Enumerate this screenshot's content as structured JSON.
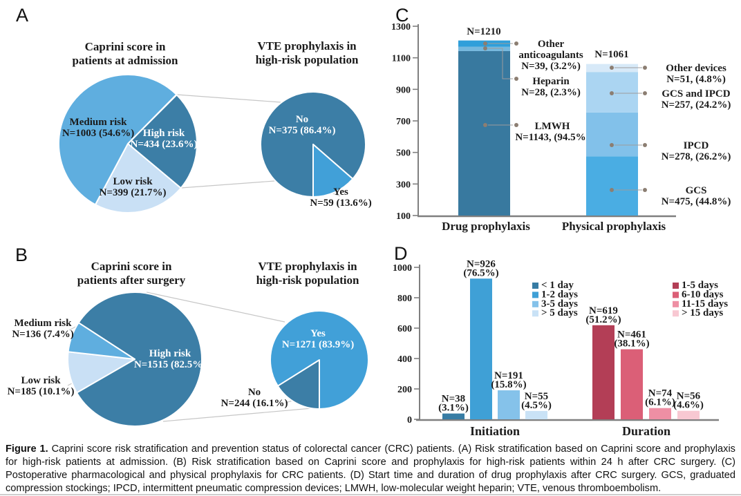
{
  "figure": {
    "panel_letters": [
      "A",
      "B",
      "C",
      "D"
    ]
  },
  "caption": {
    "prefix": "Figure 1.",
    "text": " Caprini score risk stratification and prevention status of colorectal cancer (CRC) patients. (A) Risk stratification based on Caprini score and prophylaxis for high-risk patients at admission. (B) Risk stratification based on Caprini score and prophylaxis for high-risk patients within 24 h after CRC surgery. (C) Postoperative pharmacological and physical prophylaxis for CRC patients. (D) Start time and duration of drug prophylaxis after CRC surgery. GCS, graduated compression stockings; IPCD, intermittent pneumatic compression devices; LMWH, low-molecular weight heparin; VTE, venous thromboembolism."
  },
  "chart_data": [
    {
      "id": "A-main",
      "panel": "A",
      "type": "pie",
      "title_lines": [
        "Caprini score in",
        "patients at admission"
      ],
      "slices": [
        {
          "label": "High risk",
          "n": 434,
          "pct": "23.6",
          "color": "#3C7EA6"
        },
        {
          "label": "Low risk",
          "n": 399,
          "pct": "21.7",
          "color": "#C9E0F5"
        },
        {
          "label": "Medium risk",
          "n": 1003,
          "pct": "54.6",
          "color": "#5FAEDF"
        }
      ]
    },
    {
      "id": "A-detail",
      "panel": "A",
      "type": "pie",
      "title_lines": [
        "VTE prophylaxis in",
        "high-risk population"
      ],
      "slices": [
        {
          "label": "No",
          "n": 375,
          "pct": "86.4",
          "color": "#3C7EA6"
        },
        {
          "label": "Yes",
          "n": 59,
          "pct": "13.6",
          "color": "#41A0D8"
        }
      ]
    },
    {
      "id": "B-main",
      "panel": "B",
      "type": "pie",
      "title_lines": [
        "Caprini score in",
        "patients after surgery"
      ],
      "slices": [
        {
          "label": "High risk",
          "n": 1515,
          "pct": "82.5",
          "color": "#3C7EA6"
        },
        {
          "label": "Low risk",
          "n": 185,
          "pct": "10.1",
          "color": "#C9E0F5"
        },
        {
          "label": "Medium risk",
          "n": 136,
          "pct": "7.4",
          "color": "#5FAEDF"
        }
      ]
    },
    {
      "id": "B-detail",
      "panel": "B",
      "type": "pie",
      "title_lines": [
        "VTE prophylaxis in",
        "high-risk population"
      ],
      "slices": [
        {
          "label": "No",
          "n": 244,
          "pct": "16.1",
          "color": "#3C7EA6"
        },
        {
          "label": "Yes",
          "n": 1271,
          "pct": "83.9",
          "color": "#41A0D8"
        }
      ]
    },
    {
      "id": "C",
      "panel": "C",
      "type": "stacked-bar",
      "ylim": [
        100,
        1300
      ],
      "yticks": [
        100,
        300,
        500,
        700,
        900,
        1100,
        1300
      ],
      "bars": [
        {
          "category": "Drug prophylaxis",
          "total": 1210,
          "segments": [
            {
              "label": "LMWH",
              "label_lines": [
                "LMWH"
              ],
              "n": 1143,
              "pct": "94.5",
              "color": "#38799F"
            },
            {
              "label": "Heparin",
              "label_lines": [
                "Heparin"
              ],
              "n": 28,
              "pct": "2.3",
              "color": "#74B8DE"
            },
            {
              "label": "Other anticoagulants",
              "label_lines": [
                "Other",
                "anticoagulants"
              ],
              "n": 39,
              "pct": "3.2",
              "color": "#2F9FDA"
            }
          ]
        },
        {
          "category": "Physical prophylaxis",
          "total": 1061,
          "segments": [
            {
              "label": "GCS",
              "label_lines": [
                "GCS"
              ],
              "n": 475,
              "pct": "44.8",
              "color": "#4AADE3"
            },
            {
              "label": "IPCD",
              "label_lines": [
                "IPCD"
              ],
              "n": 278,
              "pct": "26.2",
              "color": "#82C1EA"
            },
            {
              "label": "GCS and IPCD",
              "label_lines": [
                "GCS and IPCD"
              ],
              "n": 257,
              "pct": "24.2",
              "color": "#ABD5F2"
            },
            {
              "label": "Other devices",
              "label_lines": [
                "Other devices"
              ],
              "n": 51,
              "pct": "4.8",
              "color": "#D7E9F8"
            }
          ]
        }
      ]
    },
    {
      "id": "D",
      "panel": "D",
      "type": "bar",
      "ylim": [
        0,
        1000
      ],
      "yticks": [
        0,
        200,
        400,
        600,
        800,
        1000
      ],
      "groups": [
        {
          "label": "Initiation",
          "bars": [
            {
              "legend": "< 1 day",
              "n": 38,
              "pct": "3.1",
              "color": "#377CA4"
            },
            {
              "legend": "1-2 days",
              "n": 926,
              "pct": "76.5",
              "color": "#3FA0D6"
            },
            {
              "legend": "3-5 days",
              "n": 191,
              "pct": "15.8",
              "color": "#85C2EA"
            },
            {
              "legend": "> 5 days",
              "n": 55,
              "pct": "4.5",
              "color": "#C9E2F6"
            }
          ]
        },
        {
          "label": "Duration",
          "bars": [
            {
              "legend": "1-5 days",
              "n": 619,
              "pct": "51.2",
              "color": "#B33E56"
            },
            {
              "legend": "6-10 days",
              "n": 461,
              "pct": "38.1",
              "color": "#DB5F77"
            },
            {
              "legend": "11-15 days",
              "n": 74,
              "pct": "6.1",
              "color": "#EE8FA4"
            },
            {
              "legend": "> 15 days",
              "n": 56,
              "pct": "4.6",
              "color": "#F8C8D2"
            }
          ]
        }
      ]
    }
  ]
}
